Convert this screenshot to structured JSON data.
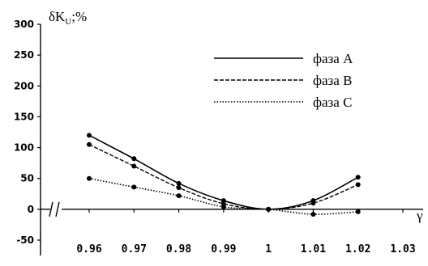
{
  "chart_data": {
    "type": "line",
    "ylabel": "δK",
    "ylabel_sub": "U",
    "ylabel_suffix": ";%",
    "xlabel": "γ",
    "x_tick_labels": [
      "0.96",
      "0.97",
      "0.98",
      "0.99",
      "1",
      "1.01",
      "1.02",
      "1.03"
    ],
    "y_tick_labels": [
      "300",
      "250",
      "200",
      "150",
      "100",
      "50",
      "0",
      "-50"
    ],
    "ylim": [
      -50,
      300
    ],
    "xlim": [
      0.95,
      1.03
    ],
    "axis_break": true,
    "grid": false,
    "legend_position": "top-right",
    "x": [
      0.96,
      0.97,
      0.98,
      0.99,
      1.0,
      1.01,
      1.02
    ],
    "series": [
      {
        "name": "фаза A",
        "style": "solid",
        "values": [
          120,
          82,
          42,
          14,
          0,
          14,
          52
        ]
      },
      {
        "name": "фаза B",
        "style": "dashed",
        "values": [
          105,
          70,
          35,
          9,
          0,
          10,
          40
        ]
      },
      {
        "name": "фаза C",
        "style": "dotted",
        "values": [
          50,
          36,
          22,
          4,
          0,
          -8,
          -4
        ]
      }
    ]
  }
}
